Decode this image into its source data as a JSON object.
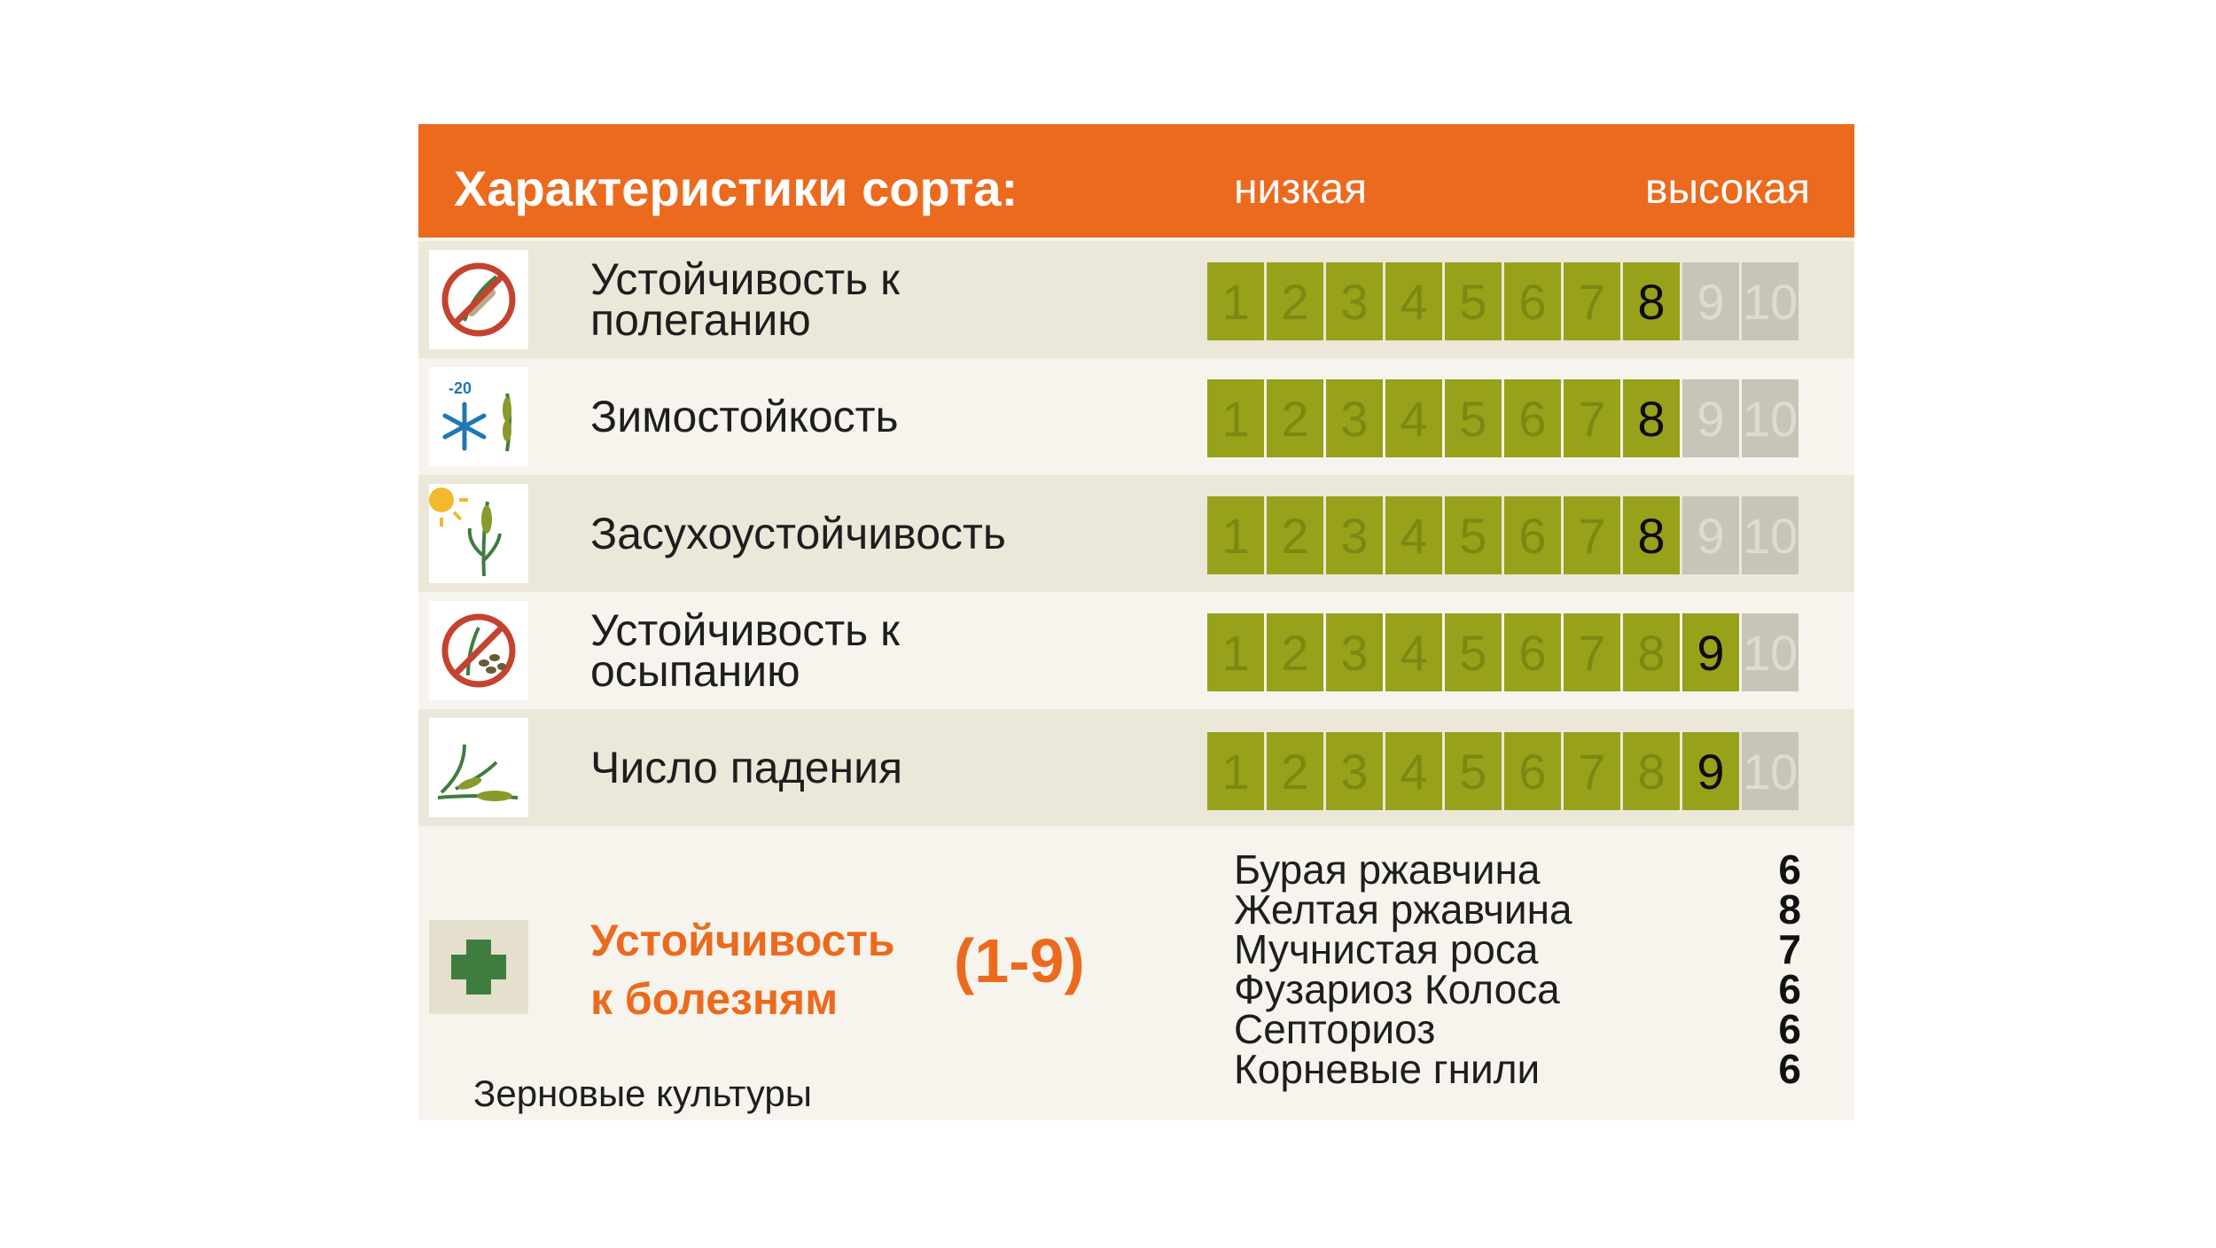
{
  "header": {
    "title": "Характеристики сорта:",
    "low_label": "низкая",
    "high_label": "высокая"
  },
  "scale_labels": [
    "1",
    "2",
    "3",
    "4",
    "5",
    "6",
    "7",
    "8",
    "9",
    "10"
  ],
  "traits": [
    {
      "icon": "no-lodging-icon",
      "label_lines": [
        "Устойчивость к",
        "полеганию"
      ],
      "score": 8
    },
    {
      "icon": "frost-wheat-icon",
      "label_lines": [
        "Зимостойкость"
      ],
      "score": 8,
      "icon_text": "-20"
    },
    {
      "icon": "sun-wheat-icon",
      "label_lines": [
        "Засухоустойчивость"
      ],
      "score": 8
    },
    {
      "icon": "no-shedding-icon",
      "label_lines": [
        "Устойчивость к",
        "осыпанию"
      ],
      "score": 9
    },
    {
      "icon": "falling-number-icon",
      "label_lines": [
        "Число падения"
      ],
      "score": 9
    }
  ],
  "disease": {
    "icon": "green-cross-icon",
    "title_lines": [
      "Устойчивость",
      "к болезням"
    ],
    "range": "(1-9)",
    "items": [
      {
        "name": "Бурая ржавчина",
        "value": "6"
      },
      {
        "name": "Желтая ржавчина",
        "value": "8"
      },
      {
        "name": "Мучнистая роса",
        "value": "7"
      },
      {
        "name": "Фузариоз Колоса",
        "value": "6"
      },
      {
        "name": "Септориоз",
        "value": "6"
      },
      {
        "name": "Корневые гнили",
        "value": "6"
      }
    ]
  },
  "footer": "Зерновые культуры",
  "colors": {
    "accent": "#ec6a1e",
    "scale_active": "#97a11a",
    "scale_inactive": "#c8c5b8",
    "icon_green": "#3f7d3f",
    "icon_blue": "#1f78b4",
    "icon_red": "#c4432f"
  }
}
